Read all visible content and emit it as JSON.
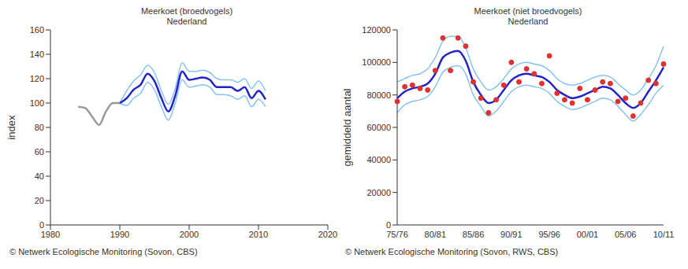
{
  "chart_data": [
    {
      "type": "line",
      "title": "Meerkoet (broedvogels)",
      "subtitle": "Nederland",
      "y_label": "index",
      "source": "© Netwerk Ecologische Monitoring (Sovon, CBS)",
      "x": [
        1984,
        1985,
        1986,
        1987,
        1988,
        1989,
        1990,
        1991,
        1992,
        1993,
        1994,
        1995,
        1996,
        1997,
        1998,
        1999,
        2000,
        2001,
        2002,
        2003,
        2004,
        2005,
        2006,
        2007,
        2008,
        2009,
        2010,
        2011
      ],
      "xlim": [
        1980,
        2020
      ],
      "xticks": [
        1980,
        1990,
        2000,
        2010,
        2020
      ],
      "ylim": [
        0,
        160
      ],
      "yticks": [
        0,
        20,
        40,
        60,
        80,
        100,
        120,
        140,
        160
      ],
      "series": [
        {
          "color": "#999999",
          "values": [
            97,
            96,
            89,
            82,
            93,
            100,
            100,
            null,
            null,
            null,
            null,
            null,
            null,
            null,
            null,
            null,
            null,
            null,
            null,
            null,
            null,
            null,
            null,
            null,
            null,
            null,
            null,
            null
          ]
        },
        {
          "color": "#87c3f0",
          "values": [
            null,
            null,
            null,
            null,
            null,
            null,
            100,
            110,
            118,
            123,
            131,
            125,
            110,
            99,
            112,
            133,
            126,
            126,
            127,
            125,
            120,
            119,
            119,
            117,
            120,
            112,
            118,
            110
          ]
        },
        {
          "color": "#87c3f0",
          "values": [
            null,
            null,
            null,
            null,
            null,
            null,
            100,
            98,
            104,
            108,
            117,
            111,
            97,
            86,
            100,
            119,
            113,
            114,
            115,
            113,
            107,
            107,
            106,
            103,
            106,
            97,
            103,
            97
          ]
        },
        {
          "color": "#2323c8",
          "values": [
            null,
            null,
            null,
            null,
            null,
            null,
            100,
            104,
            111,
            115,
            124,
            118,
            104,
            93,
            106,
            126,
            119,
            120,
            121,
            119,
            113,
            113,
            113,
            110,
            113,
            104,
            110,
            103
          ]
        }
      ]
    },
    {
      "type": "line",
      "title": "Meerkoet (niet broedvogels)",
      "subtitle": "Nederland",
      "y_label": "gemiddeld aantal",
      "source": "© Netwerk Ecologische Monitoring (Sovon, RWS, CBS)",
      "categories": [
        "75/76",
        null,
        null,
        null,
        null,
        "80/81",
        null,
        null,
        null,
        null,
        "85/86",
        null,
        null,
        null,
        null,
        "90/91",
        null,
        null,
        null,
        null,
        "95/96",
        null,
        null,
        null,
        null,
        "00/01",
        null,
        null,
        null,
        null,
        "05/06",
        null,
        null,
        null,
        null,
        "10/11"
      ],
      "ylim": [
        0,
        120000
      ],
      "yticks": [
        0,
        20000,
        40000,
        60000,
        80000,
        100000,
        120000
      ],
      "series": [
        {
          "color": "#87c3f0",
          "values": [
            88000,
            90000,
            92000,
            93000,
            96000,
            103000,
            113000,
            116000,
            116000,
            109000,
            96000,
            88000,
            83000,
            85000,
            90000,
            96000,
            99000,
            100000,
            99000,
            98000,
            95000,
            90000,
            87000,
            86000,
            87000,
            89000,
            91000,
            92000,
            91000,
            87000,
            83000,
            80000,
            83000,
            90000,
            98000,
            110000
          ]
        },
        {
          "color": "#87c3f0",
          "values": [
            69000,
            74000,
            76000,
            77000,
            79000,
            85000,
            94000,
            97000,
            98000,
            93000,
            80000,
            73000,
            67000,
            70000,
            76000,
            82000,
            85000,
            86000,
            85000,
            84000,
            81000,
            76000,
            73000,
            71000,
            72000,
            74000,
            76000,
            78000,
            77000,
            73000,
            68000,
            64000,
            68000,
            74000,
            81000,
            86000
          ]
        },
        {
          "color": "#2323c8",
          "values": [
            78000,
            82000,
            84000,
            85000,
            87000,
            93000,
            103000,
            106000,
            107000,
            101000,
            88000,
            80000,
            75000,
            77000,
            83000,
            89000,
            92000,
            93000,
            92000,
            91000,
            88000,
            83000,
            80000,
            78000,
            79000,
            81000,
            83000,
            85000,
            84000,
            80000,
            75000,
            72000,
            75000,
            82000,
            89000,
            97000
          ]
        },
        {
          "type": "scatter",
          "marker": "circle",
          "color": "#e03030",
          "values": [
            76000,
            85000,
            86000,
            84000,
            83000,
            95000,
            115000,
            95000,
            115000,
            110000,
            88000,
            78000,
            69000,
            77000,
            86000,
            100000,
            88000,
            96000,
            93000,
            87000,
            104000,
            81000,
            77000,
            75000,
            84000,
            77000,
            83000,
            88000,
            87000,
            76000,
            78000,
            67000,
            75000,
            89000,
            87000,
            99000
          ]
        }
      ]
    }
  ]
}
